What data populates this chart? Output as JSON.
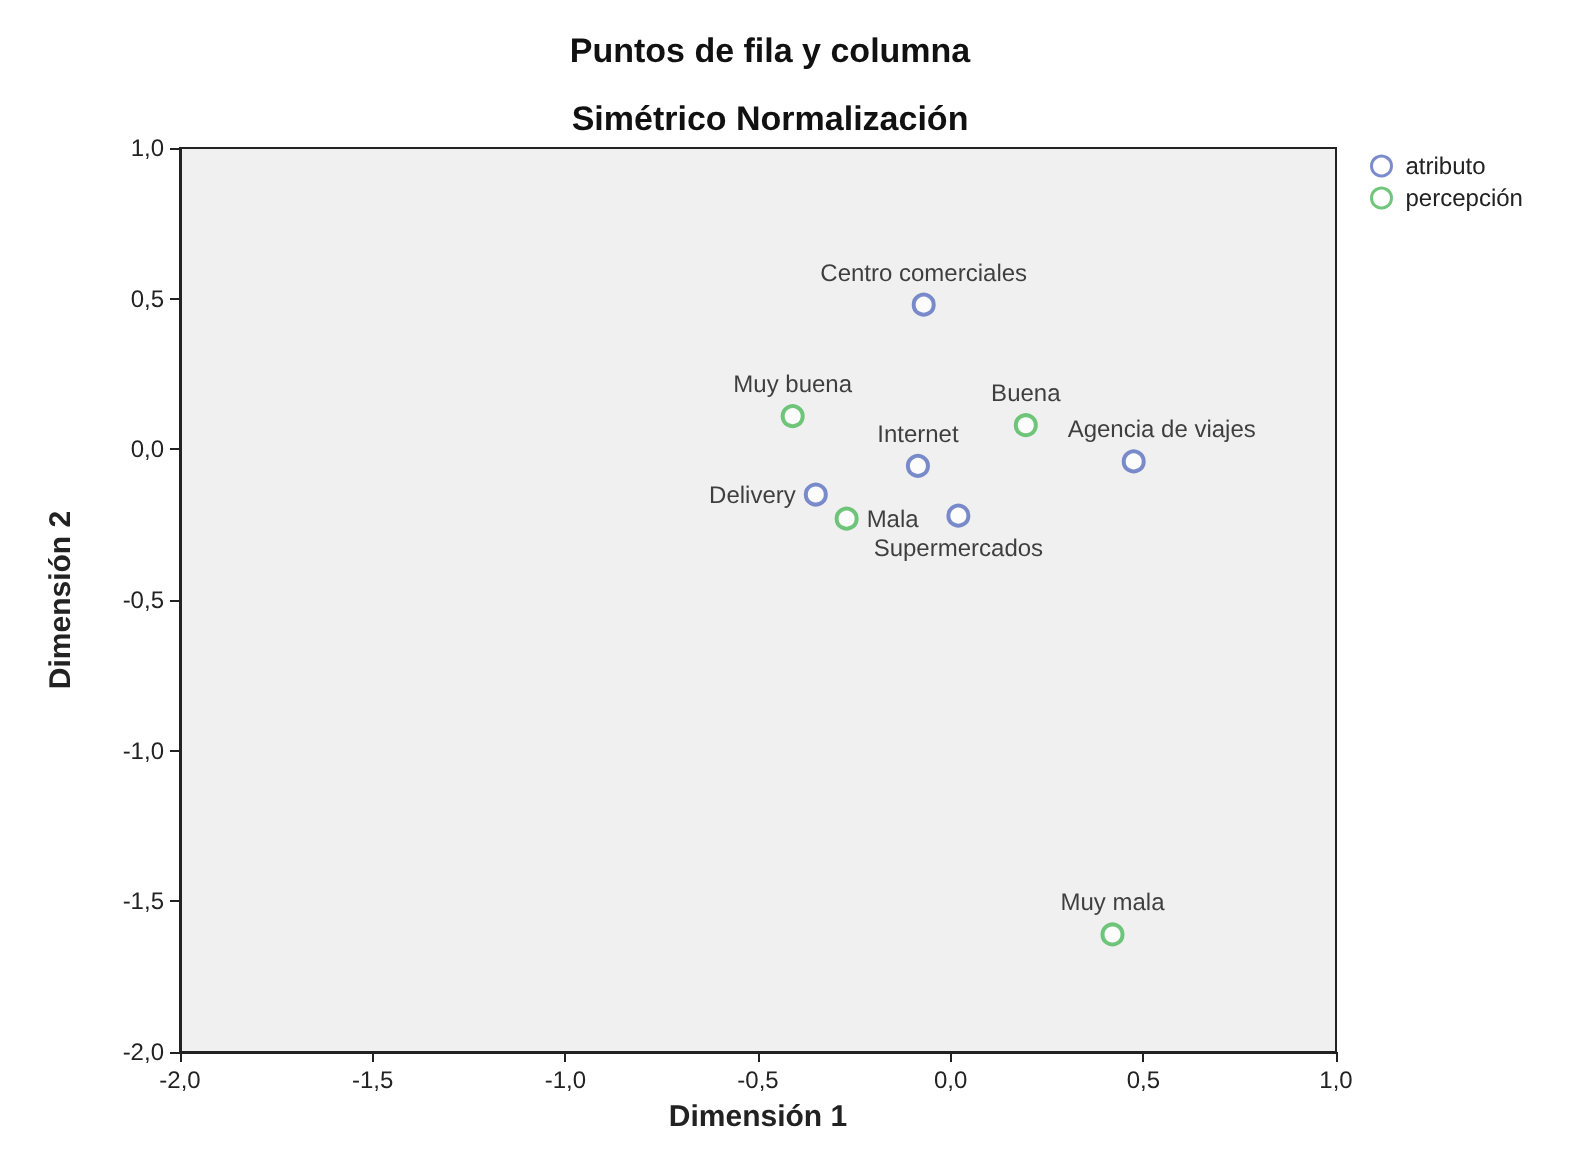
{
  "chart_data": {
    "type": "scatter",
    "title": "Puntos de fila y columna",
    "subtitle": "Simétrico Normalización",
    "xlabel": "Dimensión 1",
    "ylabel": "Dimensión 2",
    "series": [
      {
        "name": "atributo",
        "color": "#5a6fc0",
        "x": [
          -0.07,
          -0.085,
          0.475,
          -0.35,
          0.02
        ],
        "values": [
          0.48,
          -0.055,
          -0.04,
          -0.15,
          -0.22
        ],
        "value_labels": [
          "Centro comerciales",
          "Internet",
          "Agencia de viajes",
          "Delivery",
          "Supermercados"
        ]
      },
      {
        "name": "percepción",
        "color": "#4cb85a",
        "x": [
          -0.41,
          0.195,
          -0.27,
          0.42
        ],
        "values": [
          0.11,
          0.08,
          -0.23,
          -1.61
        ],
        "value_labels": [
          "Muy buena",
          "Buena",
          "Mala",
          "Muy mala"
        ]
      }
    ],
    "xlim": [
      -2,
      1
    ],
    "xticks": [
      {
        "value": -2,
        "label": "-2,0"
      },
      {
        "value": -1.5,
        "label": "-1,5"
      },
      {
        "value": -1,
        "label": "-1,0"
      },
      {
        "value": -0.5,
        "label": "-0,5"
      },
      {
        "value": 0,
        "label": "0,0"
      },
      {
        "value": 0.5,
        "label": "0,5"
      },
      {
        "value": 1,
        "label": "1,0"
      }
    ],
    "ylim": [
      -2,
      1
    ],
    "yticks": [
      {
        "value": -2,
        "label": "-2,0"
      },
      {
        "value": -1.5,
        "label": "-1,5"
      },
      {
        "value": -1,
        "label": "-1,0"
      },
      {
        "value": -0.5,
        "label": "-0,5"
      },
      {
        "value": 0,
        "label": "0,0"
      },
      {
        "value": 0.5,
        "label": "0,5"
      },
      {
        "value": 1,
        "label": "1,0"
      }
    ],
    "grid": false,
    "legend": "top right",
    "marker": "circle"
  }
}
